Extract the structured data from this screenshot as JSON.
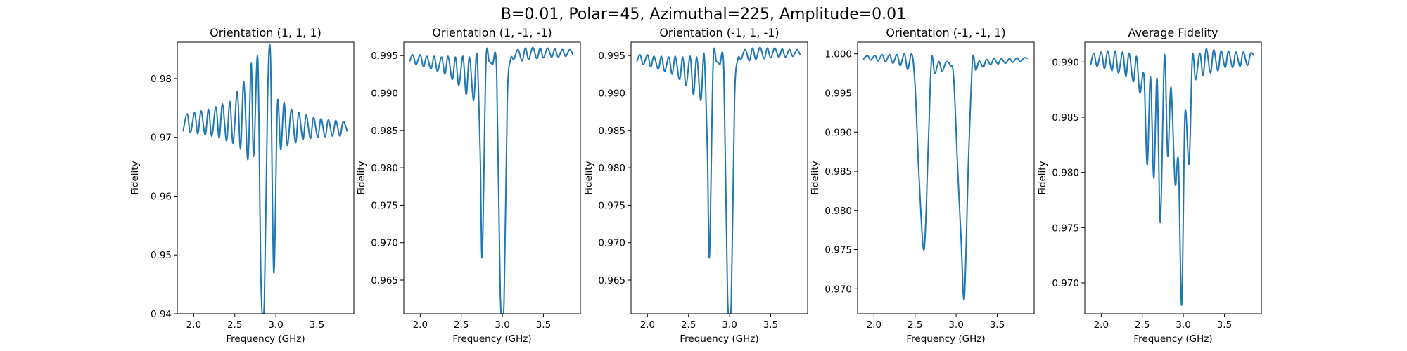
{
  "figure": {
    "suptitle": "B=0.01, Polar=45, Azimuthal=225, Amplitude=0.01",
    "line_color": "#1f77b4"
  },
  "chart_data": [
    {
      "type": "line",
      "title": "Orientation (1, 1, 1)",
      "xlabel": "Frequency (GHz)",
      "ylabel": "Fidelity",
      "xlim": [
        1.8,
        3.95
      ],
      "ylim": [
        0.94,
        0.9862
      ],
      "xticks": [
        2.0,
        2.5,
        3.0,
        3.5
      ],
      "xtick_labels": [
        "2.0",
        "2.5",
        "3.0",
        "3.5"
      ],
      "yticks": [
        0.94,
        0.95,
        0.96,
        0.97,
        0.98
      ],
      "ytick_labels": [
        "0.94",
        "0.95",
        "0.96",
        "0.97",
        "0.98"
      ],
      "series": [
        {
          "x": [
            1.87,
            1.92,
            1.96,
            2.01,
            2.05,
            2.09,
            2.14,
            2.18,
            2.22,
            2.27,
            2.31,
            2.35,
            2.4,
            2.44,
            2.48,
            2.53,
            2.57,
            2.61,
            2.66,
            2.7,
            2.73,
            2.78,
            2.82,
            2.86,
            2.9,
            2.935,
            2.975,
            3.02,
            3.06,
            3.1,
            3.14,
            3.19,
            3.24,
            3.28,
            3.33,
            3.37,
            3.42,
            3.46,
            3.51,
            3.55,
            3.6,
            3.64,
            3.69,
            3.73,
            3.78,
            3.82,
            3.87
          ],
          "y": [
            0.971,
            0.974,
            0.9708,
            0.9742,
            0.9706,
            0.9745,
            0.9704,
            0.9748,
            0.9702,
            0.9752,
            0.9699,
            0.9757,
            0.9694,
            0.9761,
            0.969,
            0.9778,
            0.9681,
            0.9795,
            0.9662,
            0.9826,
            0.9668,
            0.9834,
            0.945,
            0.942,
            0.977,
            0.9838,
            0.947,
            0.9758,
            0.9679,
            0.9759,
            0.9686,
            0.9748,
            0.9691,
            0.9742,
            0.9696,
            0.9738,
            0.9698,
            0.9734,
            0.97,
            0.9732,
            0.9701,
            0.973,
            0.9702,
            0.9729,
            0.9702,
            0.9727,
            0.971
          ]
        }
      ]
    },
    {
      "type": "line",
      "title": "Orientation (1, -1, -1)",
      "xlabel": "Frequency (GHz)",
      "ylabel": "Fidelity",
      "xlim": [
        1.8,
        3.95
      ],
      "ylim": [
        0.9605,
        0.9968
      ],
      "xticks": [
        2.0,
        2.5,
        3.0,
        3.5
      ],
      "xtick_labels": [
        "2.0",
        "2.5",
        "3.0",
        "3.5"
      ],
      "yticks": [
        0.965,
        0.97,
        0.975,
        0.98,
        0.985,
        0.99,
        0.995
      ],
      "ytick_labels": [
        "0.965",
        "0.970",
        "0.975",
        "0.980",
        "0.985",
        "0.990",
        "0.995"
      ],
      "series": [
        {
          "x": [
            1.87,
            1.91,
            1.95,
            2.0,
            2.04,
            2.08,
            2.13,
            2.17,
            2.21,
            2.26,
            2.3,
            2.34,
            2.39,
            2.43,
            2.47,
            2.52,
            2.56,
            2.6,
            2.65,
            2.69,
            2.73,
            2.755,
            2.8,
            2.84,
            2.88,
            2.93,
            2.975,
            3.02,
            3.06,
            3.1,
            3.14,
            3.19,
            3.24,
            3.28,
            3.32,
            3.37,
            3.42,
            3.46,
            3.5,
            3.55,
            3.6,
            3.64,
            3.68,
            3.73,
            3.77,
            3.82,
            3.86
          ],
          "y": [
            0.9942,
            0.9951,
            0.9938,
            0.9951,
            0.9935,
            0.9949,
            0.9932,
            0.9949,
            0.9929,
            0.9948,
            0.9925,
            0.9949,
            0.9918,
            0.9948,
            0.991,
            0.9949,
            0.9898,
            0.9948,
            0.989,
            0.9952,
            0.982,
            0.9682,
            0.994,
            0.9942,
            0.9938,
            0.993,
            0.963,
            0.9619,
            0.989,
            0.9945,
            0.9945,
            0.9958,
            0.9943,
            0.996,
            0.9945,
            0.9961,
            0.9946,
            0.996,
            0.9947,
            0.996,
            0.9948,
            0.9959,
            0.9948,
            0.9958,
            0.9949,
            0.9958,
            0.9951
          ]
        }
      ]
    },
    {
      "type": "line",
      "title": "Orientation (-1, 1, -1)",
      "xlabel": "Frequency (GHz)",
      "ylabel": "Fidelity",
      "xlim": [
        1.8,
        3.95
      ],
      "ylim": [
        0.9605,
        0.9968
      ],
      "xticks": [
        2.0,
        2.5,
        3.0,
        3.5
      ],
      "xtick_labels": [
        "2.0",
        "2.5",
        "3.0",
        "3.5"
      ],
      "yticks": [
        0.965,
        0.97,
        0.975,
        0.98,
        0.985,
        0.99,
        0.995
      ],
      "ytick_labels": [
        "0.965",
        "0.970",
        "0.975",
        "0.980",
        "0.985",
        "0.990",
        "0.995"
      ],
      "series": [
        {
          "x": [
            1.87,
            1.91,
            1.95,
            2.0,
            2.04,
            2.08,
            2.13,
            2.17,
            2.21,
            2.26,
            2.3,
            2.34,
            2.39,
            2.43,
            2.47,
            2.52,
            2.56,
            2.6,
            2.65,
            2.69,
            2.73,
            2.755,
            2.8,
            2.84,
            2.88,
            2.93,
            2.975,
            3.02,
            3.06,
            3.1,
            3.14,
            3.19,
            3.24,
            3.28,
            3.32,
            3.37,
            3.42,
            3.46,
            3.5,
            3.55,
            3.6,
            3.64,
            3.68,
            3.73,
            3.77,
            3.82,
            3.86
          ],
          "y": [
            0.9942,
            0.9951,
            0.9938,
            0.9951,
            0.9935,
            0.9949,
            0.9932,
            0.9949,
            0.9929,
            0.9948,
            0.9925,
            0.9949,
            0.9918,
            0.9948,
            0.991,
            0.9949,
            0.9898,
            0.9948,
            0.989,
            0.9952,
            0.982,
            0.9682,
            0.994,
            0.9942,
            0.9938,
            0.993,
            0.963,
            0.9619,
            0.989,
            0.9945,
            0.9945,
            0.9958,
            0.9943,
            0.996,
            0.9945,
            0.9961,
            0.9946,
            0.996,
            0.9947,
            0.996,
            0.9948,
            0.9959,
            0.9948,
            0.9958,
            0.9949,
            0.9958,
            0.9951
          ]
        }
      ]
    },
    {
      "type": "line",
      "title": "Orientation (-1, -1, 1)",
      "xlabel": "Frequency (GHz)",
      "ylabel": "Fidelity",
      "xlim": [
        1.8,
        3.95
      ],
      "ylim": [
        0.9668,
        1.0015
      ],
      "xticks": [
        2.0,
        2.5,
        3.0,
        3.5
      ],
      "xtick_labels": [
        "2.0",
        "2.5",
        "3.0",
        "3.5"
      ],
      "yticks": [
        0.97,
        0.975,
        0.98,
        0.985,
        0.99,
        0.995,
        1.0
      ],
      "ytick_labels": [
        "0.970",
        "0.975",
        "0.980",
        "0.985",
        "0.990",
        "0.995",
        "1.000"
      ],
      "series": [
        {
          "x": [
            1.87,
            1.92,
            1.96,
            2.01,
            2.05,
            2.1,
            2.14,
            2.19,
            2.23,
            2.28,
            2.32,
            2.37,
            2.41,
            2.46,
            2.5,
            2.55,
            2.61,
            2.66,
            2.7,
            2.74,
            2.79,
            2.83,
            2.88,
            2.93,
            2.97,
            3.02,
            3.06,
            3.1,
            3.15,
            3.2,
            3.24,
            3.28,
            3.33,
            3.37,
            3.42,
            3.46,
            3.51,
            3.55,
            3.6,
            3.65,
            3.69,
            3.74,
            3.78,
            3.83,
            3.87
          ],
          "y": [
            0.9993,
            0.9998,
            0.9992,
            0.9998,
            0.9991,
            0.9999,
            0.999,
            0.9999,
            0.9988,
            0.9999,
            0.9985,
            1.0,
            0.998,
            1.0,
            0.996,
            0.984,
            0.975,
            0.988,
            0.9993,
            0.9975,
            0.999,
            0.9978,
            0.999,
            0.9985,
            0.997,
            0.985,
            0.9765,
            0.9688,
            0.9862,
            0.9992,
            0.9979,
            0.9991,
            0.9983,
            0.9993,
            0.9986,
            0.9994,
            0.9987,
            0.9994,
            0.9988,
            0.9994,
            0.9989,
            0.9995,
            0.999,
            0.9995,
            0.9994
          ]
        }
      ]
    },
    {
      "type": "line",
      "title": "Average Fidelity",
      "xlabel": "Frequency (GHz)",
      "ylabel": "Fidelity",
      "xlim": [
        1.8,
        3.95
      ],
      "ylim": [
        0.9672,
        0.9918
      ],
      "xticks": [
        2.0,
        2.5,
        3.0,
        3.5
      ],
      "xtick_labels": [
        "2.0",
        "2.5",
        "3.0",
        "3.5"
      ],
      "yticks": [
        0.97,
        0.975,
        0.98,
        0.985,
        0.99
      ],
      "ytick_labels": [
        "0.970",
        "0.975",
        "0.980",
        "0.985",
        "0.990"
      ],
      "series": [
        {
          "x": [
            1.87,
            1.91,
            1.95,
            2.0,
            2.04,
            2.08,
            2.13,
            2.17,
            2.21,
            2.26,
            2.3,
            2.34,
            2.39,
            2.43,
            2.47,
            2.52,
            2.56,
            2.6,
            2.64,
            2.68,
            2.72,
            2.77,
            2.81,
            2.85,
            2.9,
            2.94,
            2.98,
            3.02,
            3.07,
            3.11,
            3.15,
            3.2,
            3.24,
            3.28,
            3.33,
            3.37,
            3.42,
            3.46,
            3.51,
            3.55,
            3.6,
            3.64,
            3.69,
            3.73,
            3.78,
            3.82,
            3.86
          ],
          "y": [
            0.9897,
            0.9908,
            0.9896,
            0.9909,
            0.9894,
            0.991,
            0.9892,
            0.991,
            0.989,
            0.9909,
            0.9887,
            0.9908,
            0.9882,
            0.9905,
            0.9872,
            0.9888,
            0.9807,
            0.9887,
            0.9795,
            0.9885,
            0.9755,
            0.9906,
            0.9815,
            0.9877,
            0.979,
            0.981,
            0.968,
            0.9853,
            0.9808,
            0.9905,
            0.9884,
            0.9908,
            0.9888,
            0.9912,
            0.989,
            0.9911,
            0.9892,
            0.991,
            0.9895,
            0.991,
            0.9895,
            0.9909,
            0.9896,
            0.9909,
            0.9897,
            0.9908,
            0.9906
          ]
        }
      ]
    }
  ]
}
